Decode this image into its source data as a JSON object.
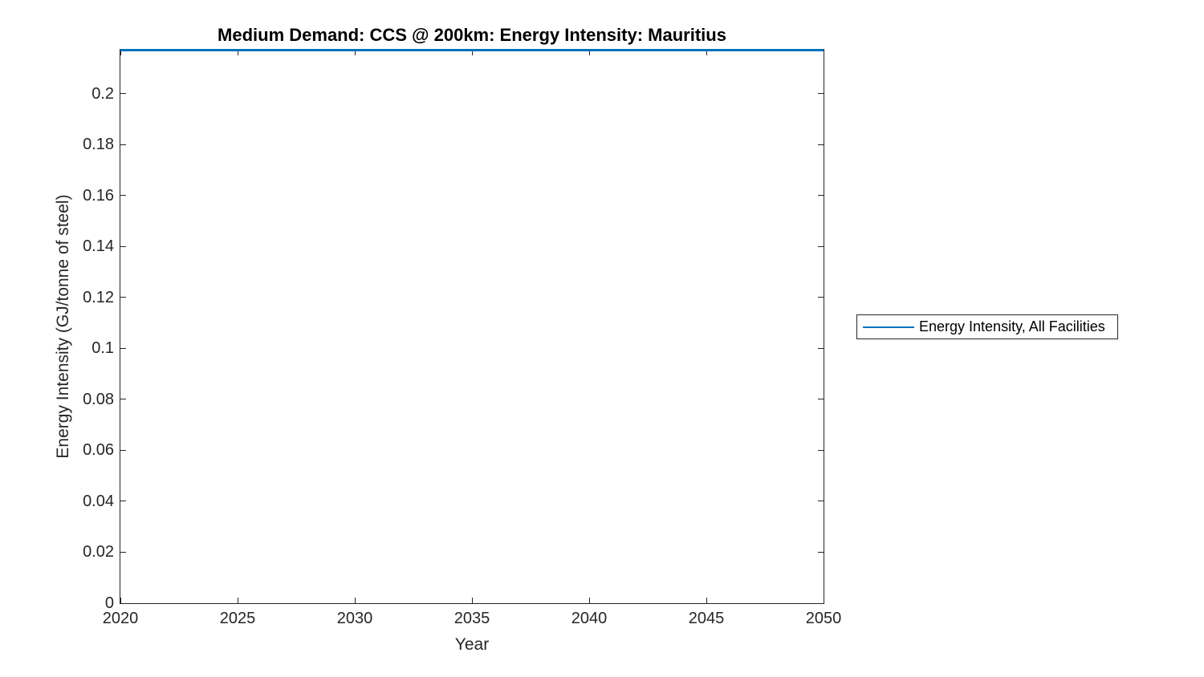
{
  "figure": {
    "background_color": "#ffffff",
    "axis_color": "#262626"
  },
  "chart_data": {
    "type": "line",
    "title": "Medium Demand: CCS @ 200km: Energy Intensity: Mauritius",
    "xlabel": "Year",
    "ylabel": "Energy Intensity (GJ/tonne of steel)",
    "xlim": [
      2020,
      2050
    ],
    "ylim": [
      0,
      0.2173
    ],
    "x_ticks": [
      2020,
      2025,
      2030,
      2035,
      2040,
      2045,
      2050
    ],
    "x_tick_labels": [
      "2020",
      "2025",
      "2030",
      "2035",
      "2040",
      "2045",
      "2050"
    ],
    "y_ticks": [
      0,
      0.02,
      0.04,
      0.06,
      0.08,
      0.1,
      0.12,
      0.14,
      0.16,
      0.18,
      0.2
    ],
    "y_tick_labels": [
      "0",
      "0.02",
      "0.04",
      "0.06",
      "0.08",
      "0.1",
      "0.12",
      "0.14",
      "0.16",
      "0.18",
      "0.2"
    ],
    "grid": false,
    "legend": {
      "position": "right-outside",
      "entries": [
        {
          "label": "Energy Intensity, All Facilities",
          "color": "#0072BD"
        }
      ]
    },
    "series": [
      {
        "name": "Energy Intensity, All Facilities",
        "color": "#0072BD",
        "x": [
          2020,
          2025,
          2030,
          2035,
          2040,
          2045,
          2050
        ],
        "values": [
          0.2173,
          0.2173,
          0.2173,
          0.2173,
          0.2173,
          0.2173,
          0.2173
        ]
      }
    ]
  }
}
